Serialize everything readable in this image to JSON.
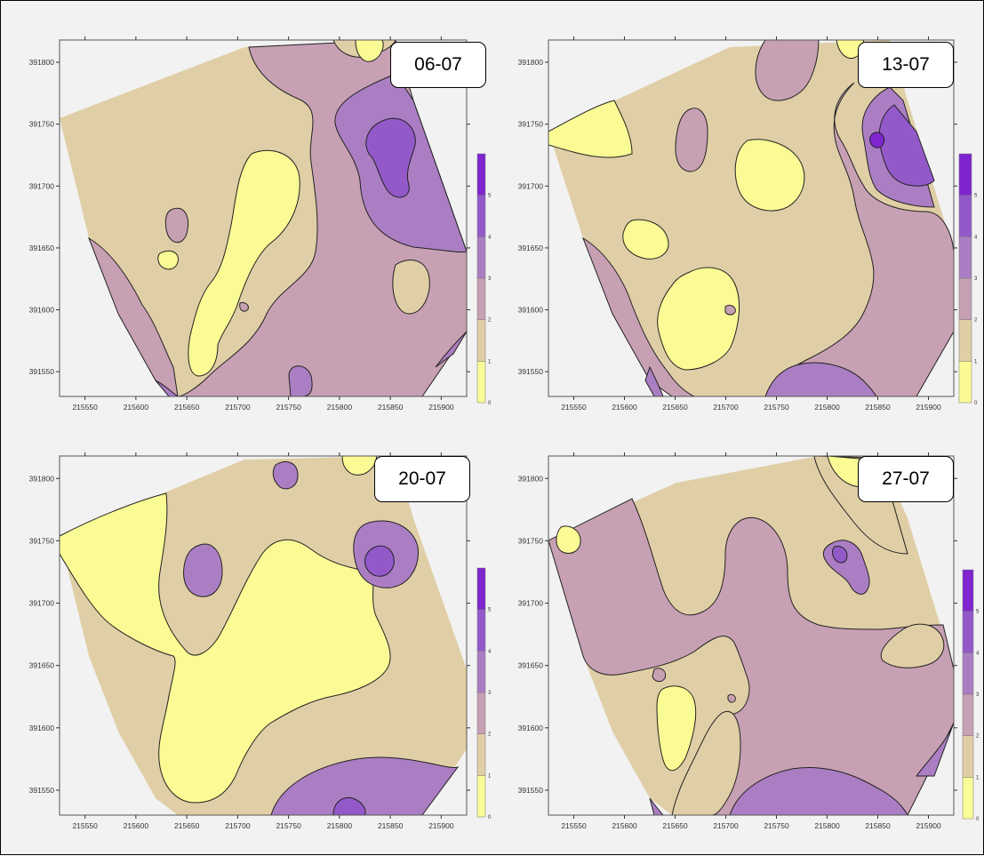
{
  "colors": {
    "level_0": "#fbfb95",
    "level_1": "#e0cfa6",
    "level_2": "#c7a0b3",
    "level_3": "#ab7ec3",
    "level_4": "#9359c9",
    "level_5": "#7e25cf"
  },
  "chart_data": [
    {
      "type": "heatmap",
      "label": "06-07",
      "xticks": [
        "215550",
        "215600",
        "215650",
        "215700",
        "215750",
        "215800",
        "215850",
        "215900"
      ],
      "yticks": [
        "391550",
        "391600",
        "391650",
        "391700",
        "391750",
        "391800"
      ],
      "xlim": [
        215525,
        215925
      ],
      "ylim": [
        391530,
        391818
      ],
      "colorbar_tick_labels": [
        "0",
        "1",
        "2",
        "3",
        "4",
        "5"
      ]
    },
    {
      "type": "heatmap",
      "label": "13-07",
      "xticks": [
        "215550",
        "215600",
        "215650",
        "215700",
        "215750",
        "215800",
        "215850",
        "215900"
      ],
      "yticks": [
        "391550",
        "391600",
        "391650",
        "391700",
        "391750",
        "391800"
      ],
      "xlim": [
        215525,
        215925
      ],
      "ylim": [
        391530,
        391818
      ],
      "colorbar_tick_labels": [
        "0",
        "1",
        "2",
        "3",
        "4",
        "5"
      ]
    },
    {
      "type": "heatmap",
      "label": "20-07",
      "xticks": [
        "215550",
        "215600",
        "215650",
        "215700",
        "215750",
        "215800",
        "215850",
        "215900"
      ],
      "yticks": [
        "391550",
        "391600",
        "391650",
        "391700",
        "391750",
        "391800"
      ],
      "xlim": [
        215525,
        215925
      ],
      "ylim": [
        391530,
        391818
      ],
      "colorbar_tick_labels": [
        "0",
        "1",
        "2",
        "3",
        "4",
        "5"
      ]
    },
    {
      "type": "heatmap",
      "label": "27-07",
      "xticks": [
        "215550",
        "215600",
        "215650",
        "215700",
        "215750",
        "215800",
        "215850",
        "215900"
      ],
      "yticks": [
        "391550",
        "391600",
        "391650",
        "391700",
        "391750",
        "391800"
      ],
      "xlim": [
        215525,
        215925
      ],
      "ylim": [
        391530,
        391818
      ],
      "colorbar_tick_labels": [
        "0",
        "1",
        "2",
        "3",
        "4",
        "5"
      ]
    }
  ]
}
